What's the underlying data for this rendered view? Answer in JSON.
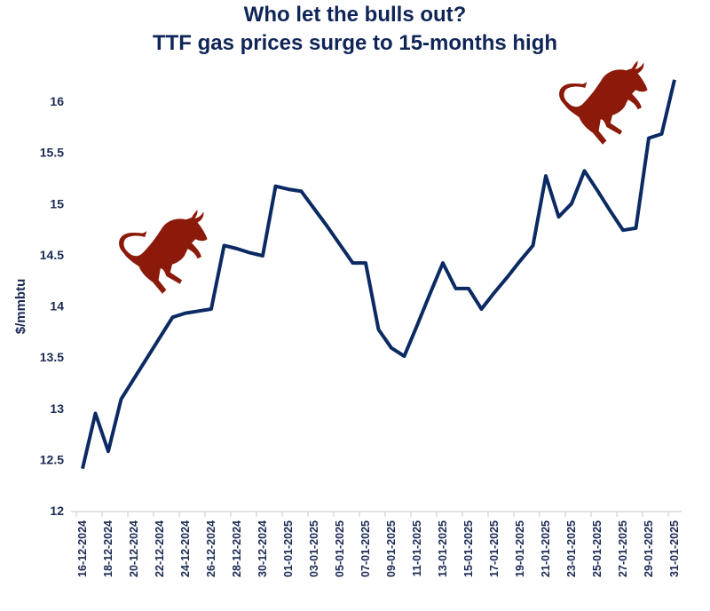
{
  "chart_data": {
    "type": "line",
    "title": [
      "Who let the bulls out?",
      "TTF gas prices surge to 15-months high"
    ],
    "xlabel": "",
    "ylabel": "$/mmbtu",
    "ylim": [
      12,
      16.2
    ],
    "yticks": [
      "12",
      "12.5",
      "13",
      "13.5",
      "14",
      "14.5",
      "15",
      "15.5",
      "16"
    ],
    "ytick_values": [
      12,
      12.5,
      13,
      13.5,
      14,
      14.5,
      15,
      15.5,
      16
    ],
    "xtick_labels": [
      "16-12-2024",
      "18-12-2024",
      "20-12-2024",
      "22-12-2024",
      "24-12-2024",
      "26-12-2024",
      "28-12-2024",
      "30-12-2024",
      "01-01-2025",
      "03-01-2025",
      "05-01-2025",
      "07-01-2025",
      "09-01-2025",
      "11-01-2025",
      "13-01-2025",
      "15-01-2025",
      "17-01-2025",
      "19-01-2025",
      "21-01-2025",
      "23-01-2025",
      "25-01-2025",
      "27-01-2025",
      "29-01-2025",
      "31-01-2025"
    ],
    "grid": false,
    "legend": "none",
    "series": [
      {
        "name": "TTF gas price",
        "color": "#0b2a63",
        "x": [
          "16-12-2024",
          "17-12-2024",
          "18-12-2024",
          "19-12-2024",
          "20-12-2024",
          "21-12-2024",
          "22-12-2024",
          "23-12-2024",
          "24-12-2024",
          "25-12-2024",
          "26-12-2024",
          "27-12-2024",
          "28-12-2024",
          "29-12-2024",
          "30-12-2024",
          "31-12-2024",
          "01-01-2025",
          "02-01-2025",
          "03-01-2025",
          "04-01-2025",
          "05-01-2025",
          "06-01-2025",
          "07-01-2025",
          "08-01-2025",
          "09-01-2025",
          "10-01-2025",
          "11-01-2025",
          "12-01-2025",
          "13-01-2025",
          "14-01-2025",
          "15-01-2025",
          "16-01-2025",
          "17-01-2025",
          "18-01-2025",
          "19-01-2025",
          "20-01-2025",
          "21-01-2025",
          "22-01-2025",
          "23-01-2025",
          "24-01-2025",
          "25-01-2025",
          "26-01-2025",
          "27-01-2025",
          "28-01-2025",
          "29-01-2025",
          "30-01-2025",
          "31-01-2025"
        ],
        "values": [
          12.41,
          12.95,
          12.58,
          13.09,
          13.29,
          13.49,
          13.69,
          13.89,
          13.93,
          13.95,
          13.97,
          14.59,
          14.56,
          14.52,
          14.49,
          15.17,
          15.14,
          15.12,
          14.95,
          14.78,
          14.6,
          14.42,
          14.42,
          13.77,
          13.59,
          13.51,
          13.81,
          14.12,
          14.42,
          14.17,
          14.17,
          13.97,
          14.13,
          14.28,
          14.44,
          14.59,
          15.27,
          14.87,
          15.0,
          15.32,
          15.13,
          14.93,
          14.74,
          14.76,
          15.64,
          15.68,
          16.21
        ]
      }
    ],
    "annotations": [
      "bull-icon",
      "bull-icon"
    ],
    "bull_color": "#8b1a0a"
  }
}
